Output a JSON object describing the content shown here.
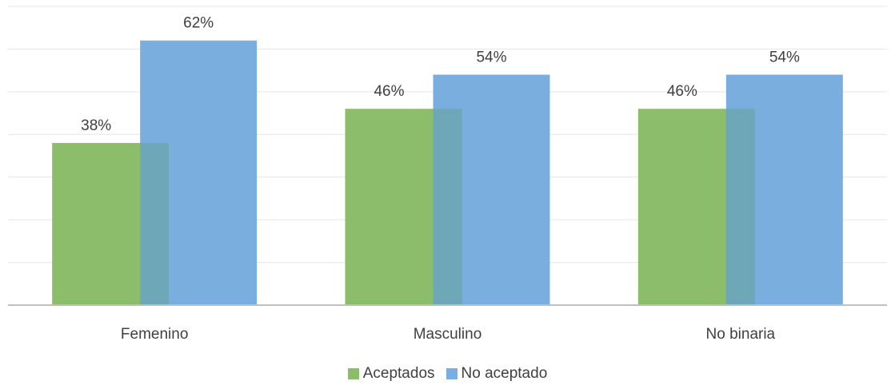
{
  "chart_data": {
    "type": "bar",
    "categories": [
      "Femenino",
      "Masculino",
      "No binaria"
    ],
    "series": [
      {
        "name": "Aceptados",
        "values": [
          38,
          46,
          46
        ],
        "labels": [
          "38%",
          "46%",
          "46%"
        ],
        "color": "#8cbd6b"
      },
      {
        "name": "No aceptado",
        "values": [
          62,
          54,
          54
        ],
        "labels": [
          "62%",
          "54%",
          "54%"
        ],
        "color": "#7aaede"
      }
    ],
    "ylim": [
      0,
      70
    ],
    "grid": true,
    "legend_position": "bottom",
    "overlap_color": "#6ea7b8",
    "gridline_color": "#e6e6e6",
    "axis_color": "#bfbfbf"
  }
}
